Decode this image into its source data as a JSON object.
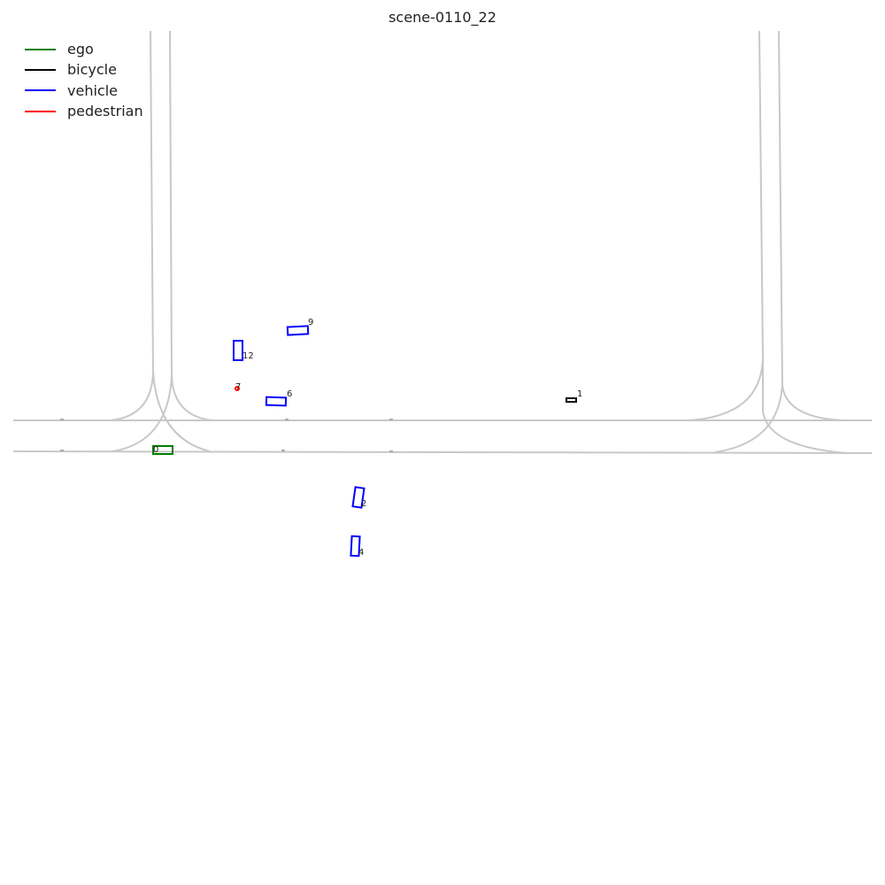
{
  "title": "scene-0110_22",
  "legend": [
    {
      "label": "ego",
      "color": "#008000"
    },
    {
      "label": "bicycle",
      "color": "#000000"
    },
    {
      "label": "vehicle",
      "color": "#0000ff"
    },
    {
      "label": "pedestrian",
      "color": "#ff0000"
    }
  ],
  "agents": [
    {
      "id": "0",
      "type": "ego"
    },
    {
      "id": "1",
      "type": "bicycle"
    },
    {
      "id": "2",
      "type": "vehicle"
    },
    {
      "id": "4",
      "type": "vehicle"
    },
    {
      "id": "6",
      "type": "vehicle"
    },
    {
      "id": "7",
      "type": "pedestrian"
    },
    {
      "id": "9",
      "type": "vehicle"
    },
    {
      "id": "12",
      "type": "vehicle"
    }
  ]
}
